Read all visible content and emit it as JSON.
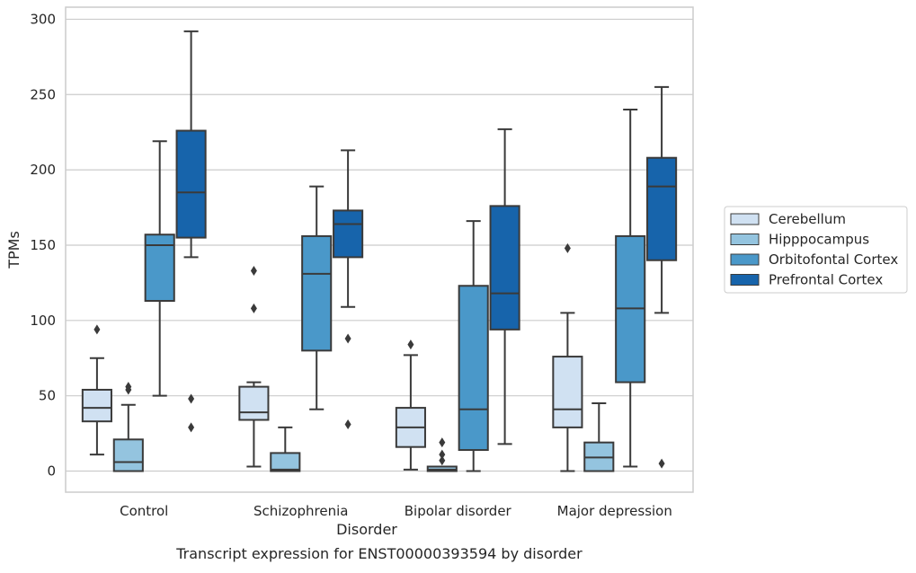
{
  "chart_data": {
    "type": "box",
    "title": "",
    "caption": "Transcript expression for ENST00000393594 by disorder",
    "xlabel": "Disorder",
    "ylabel": "TPMs",
    "ylim": [
      -14,
      308
    ],
    "yticks": [
      0,
      50,
      100,
      150,
      200,
      250,
      300
    ],
    "grid": "horizontal",
    "legend_position": "right",
    "categories": [
      "Control",
      "Schizophrenia",
      "Bipolar disorder",
      "Major depression"
    ],
    "series": [
      {
        "name": "Cerebellum",
        "color": "#d0e1f2",
        "boxes": [
          {
            "whisker_low": 11,
            "q1": 33,
            "median": 42,
            "q3": 54,
            "whisker_high": 75,
            "outliers": [
              94
            ]
          },
          {
            "whisker_low": 3,
            "q1": 34,
            "median": 39,
            "q3": 56,
            "whisker_high": 59,
            "outliers": [
              108,
              133
            ]
          },
          {
            "whisker_low": 1,
            "q1": 16,
            "median": 29,
            "q3": 42,
            "whisker_high": 77,
            "outliers": [
              84
            ]
          },
          {
            "whisker_low": 0,
            "q1": 29,
            "median": 41,
            "q3": 76,
            "whisker_high": 105,
            "outliers": [
              148
            ]
          }
        ]
      },
      {
        "name": "Hipppocampus",
        "color": "#94c4df",
        "boxes": [
          {
            "whisker_low": 0,
            "q1": 0,
            "median": 6,
            "q3": 21,
            "whisker_high": 44,
            "outliers": [
              54,
              56
            ]
          },
          {
            "whisker_low": 0,
            "q1": 0,
            "median": 1,
            "q3": 12,
            "whisker_high": 29,
            "outliers": []
          },
          {
            "whisker_low": 0,
            "q1": 0,
            "median": 1,
            "q3": 3,
            "whisker_high": 3,
            "outliers": [
              7,
              11,
              19
            ]
          },
          {
            "whisker_low": 0,
            "q1": 0,
            "median": 9,
            "q3": 19,
            "whisker_high": 45,
            "outliers": []
          }
        ]
      },
      {
        "name": "Orbitofontal Cortex",
        "color": "#4a98c9",
        "boxes": [
          {
            "whisker_low": 50,
            "q1": 113,
            "median": 150,
            "q3": 157,
            "whisker_high": 219,
            "outliers": []
          },
          {
            "whisker_low": 41,
            "q1": 80,
            "median": 131,
            "q3": 156,
            "whisker_high": 189,
            "outliers": []
          },
          {
            "whisker_low": 0,
            "q1": 14,
            "median": 41,
            "q3": 123,
            "whisker_high": 166,
            "outliers": []
          },
          {
            "whisker_low": 3,
            "q1": 59,
            "median": 108,
            "q3": 156,
            "whisker_high": 240,
            "outliers": []
          }
        ]
      },
      {
        "name": "Prefrontal Cortex",
        "color": "#1764ab",
        "boxes": [
          {
            "whisker_low": 142,
            "q1": 155,
            "median": 185,
            "q3": 226,
            "whisker_high": 292,
            "outliers": [
              29,
              48
            ]
          },
          {
            "whisker_low": 109,
            "q1": 142,
            "median": 164,
            "q3": 173,
            "whisker_high": 213,
            "outliers": [
              31,
              88
            ]
          },
          {
            "whisker_low": 18,
            "q1": 94,
            "median": 118,
            "q3": 176,
            "whisker_high": 227,
            "outliers": []
          },
          {
            "whisker_low": 105,
            "q1": 140,
            "median": 189,
            "q3": 208,
            "whisker_high": 255,
            "outliers": [
              5
            ]
          }
        ]
      }
    ]
  }
}
